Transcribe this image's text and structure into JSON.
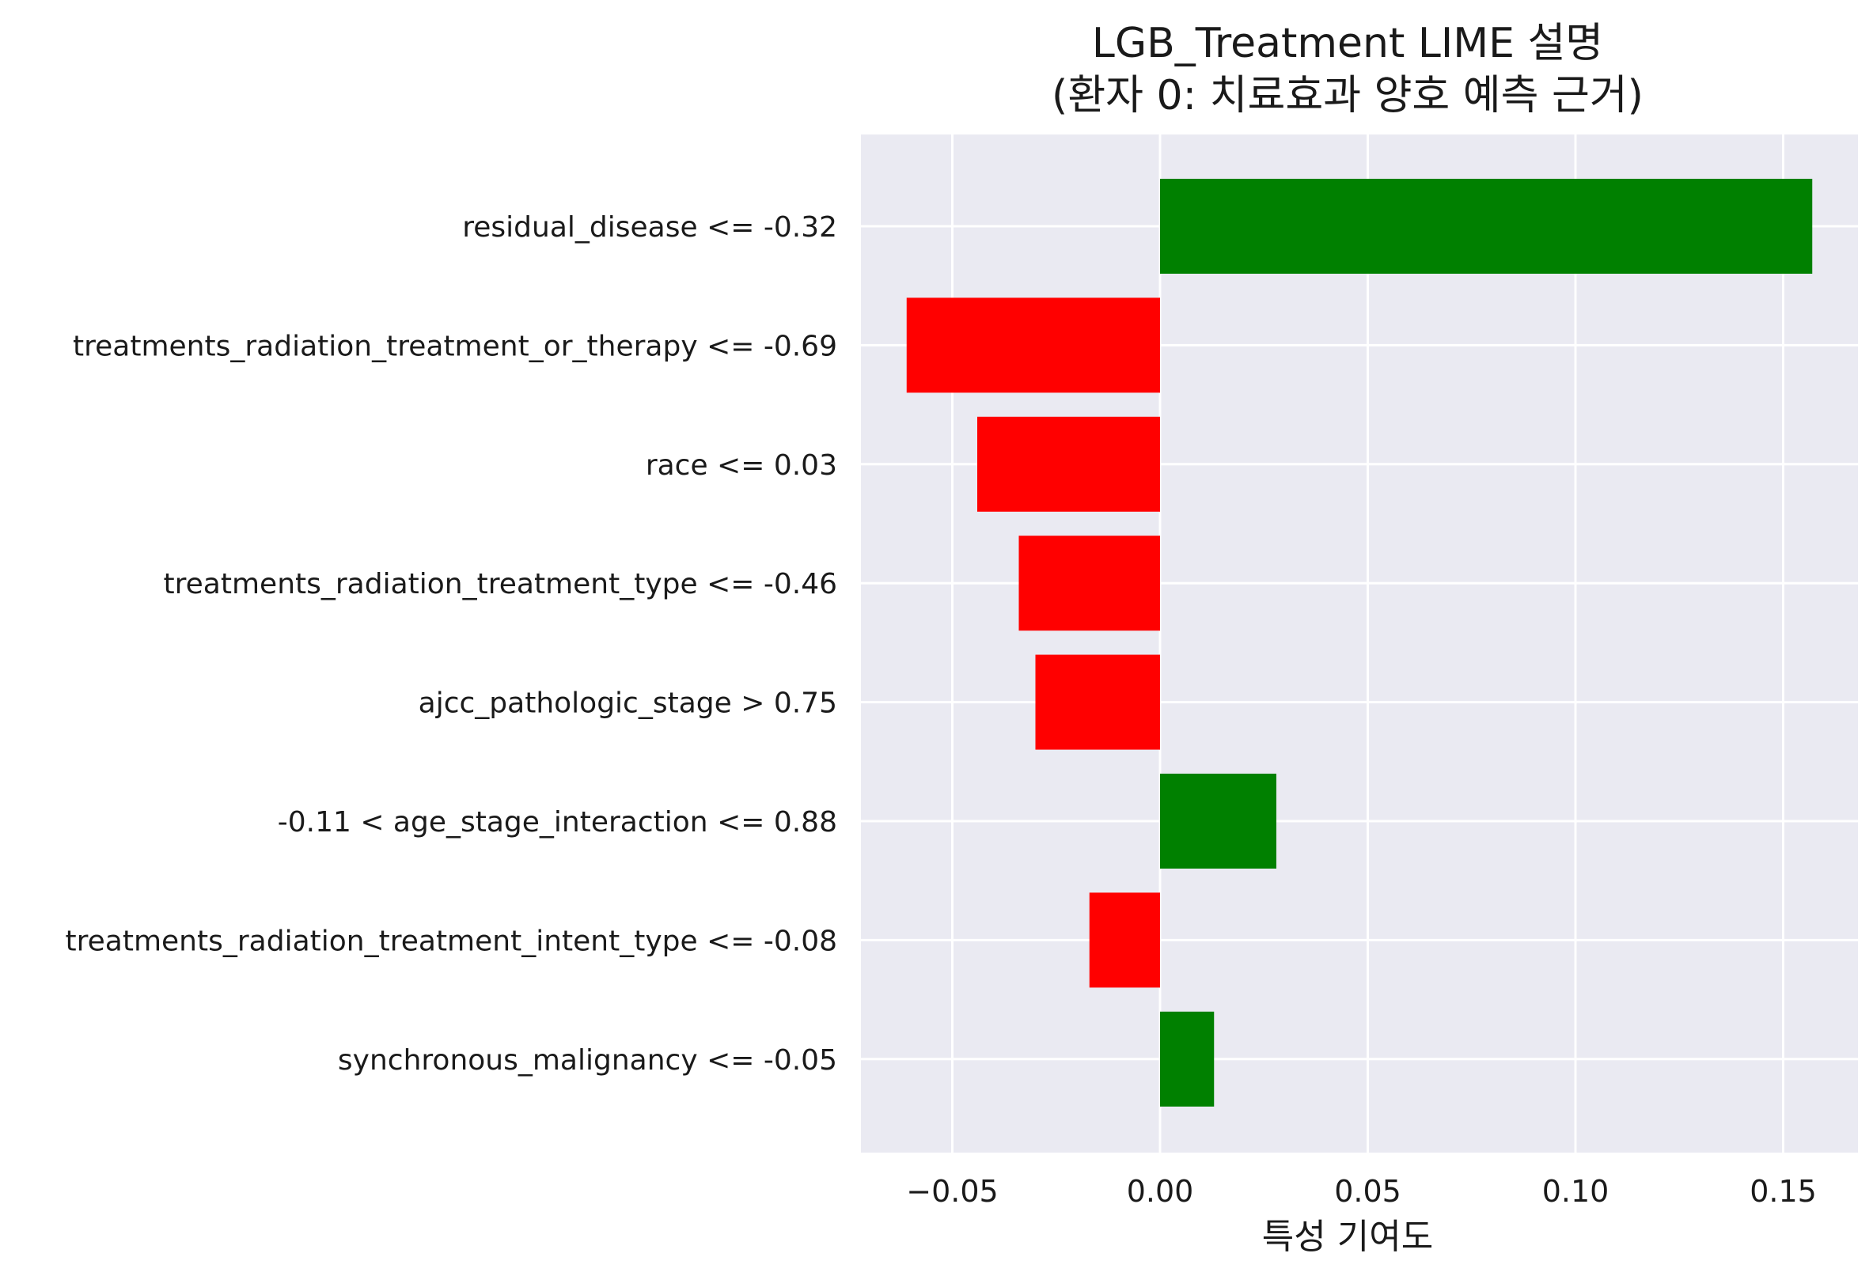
{
  "chart_data": {
    "type": "bar",
    "orientation": "horizontal",
    "title": "LGB_Treatment LIME 설명",
    "subtitle": "(환자 0: 치료효과 양호 예측 근거)",
    "xlabel": "특성 기여도",
    "ylabel": "",
    "xlim": [
      -0.072,
      0.168
    ],
    "xticks": [
      -0.05,
      0.0,
      0.05,
      0.1,
      0.15
    ],
    "xtick_labels": [
      "−0.05",
      "0.00",
      "0.05",
      "0.10",
      "0.15"
    ],
    "grid": true,
    "categories": [
      "residual_disease <= -0.32",
      "treatments_radiation_treatment_or_therapy <= -0.69",
      "race <= 0.03",
      "treatments_radiation_treatment_type <= -0.46",
      "ajcc_pathologic_stage > 0.75",
      "-0.11 < age_stage_interaction <= 0.88",
      "treatments_radiation_treatment_intent_type <= -0.08",
      "synchronous_malignancy <= -0.05"
    ],
    "values": [
      0.157,
      -0.061,
      -0.044,
      -0.034,
      -0.03,
      0.028,
      -0.017,
      0.013
    ],
    "colors": {
      "positive": "#008000",
      "negative": "#ff0000",
      "plot_background": "#eaeaf2",
      "grid": "#ffffff"
    }
  }
}
